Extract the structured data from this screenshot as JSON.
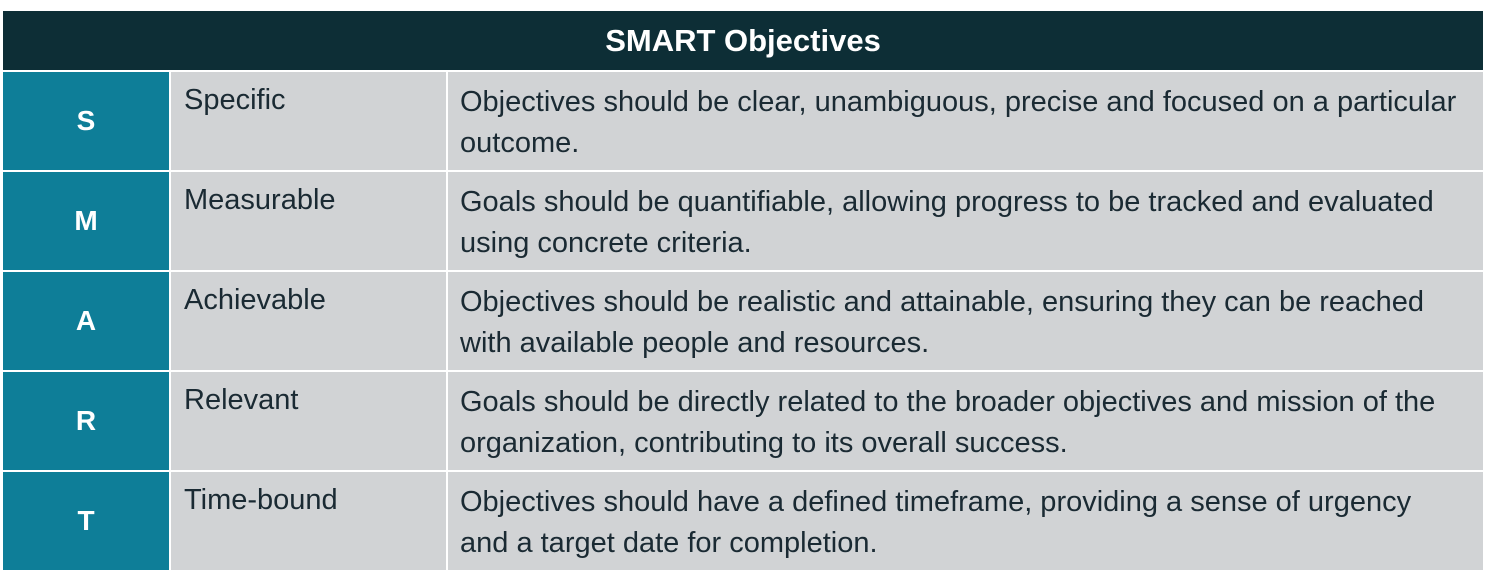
{
  "title": "SMART Objectives",
  "rows": [
    {
      "letter": "S",
      "term": "Specific",
      "description": "Objectives should be clear, unambiguous, precise and focused on a particular outcome."
    },
    {
      "letter": "M",
      "term": "Measurable",
      "description": "Goals should be quantifiable, allowing progress to be tracked and evaluated using concrete criteria."
    },
    {
      "letter": "A",
      "term": "Achievable",
      "description": "Objectives should be realistic and attainable, ensuring they can be reached with available people and resources."
    },
    {
      "letter": "R",
      "term": "Relevant",
      "description": "Goals should be directly related to the broader objectives and mission of the organization, contributing to its overall success."
    },
    {
      "letter": "T",
      "term": "Time-bound",
      "description": "Objectives should have a defined timeframe, providing a sense of urgency and a target date for completion."
    }
  ]
}
